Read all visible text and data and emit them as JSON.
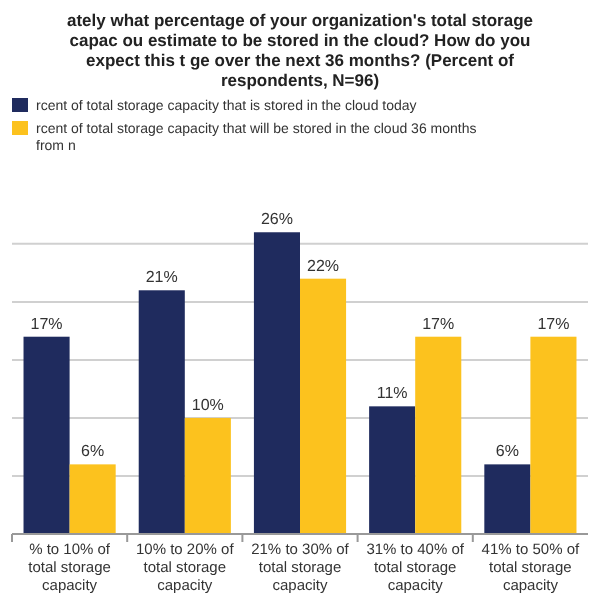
{
  "chart_data": {
    "type": "bar",
    "title": "ately what percentage of your organization's total storage capac ou estimate to be stored in the cloud? How do you expect this t ge over the next 36 months? (Percent of respondents, N=96)",
    "categories": [
      "% to 10% of total storage capacity",
      "10% to 20% of total storage capacity",
      "21% to 30% of total storage capacity",
      "31% to 40% of total storage capacity",
      "41% to 50% of total storage capacity"
    ],
    "series": [
      {
        "name": "rcent of total storage capacity that is stored in the cloud today",
        "color": "#1f2b5e",
        "values": [
          17,
          21,
          26,
          11,
          6
        ],
        "value_labels": [
          "17%",
          "21%",
          "26%",
          "11%",
          "6%"
        ]
      },
      {
        "name": "rcent of total storage capacity that will be stored in the cloud 36 months from n",
        "color": "#fcc21e",
        "values": [
          6,
          10,
          22,
          17,
          17
        ],
        "value_labels": [
          "6%",
          "10%",
          "22%",
          "17%",
          "17%"
        ]
      }
    ],
    "tick_labels": "x",
    "grid": "y",
    "legend": "top"
  }
}
